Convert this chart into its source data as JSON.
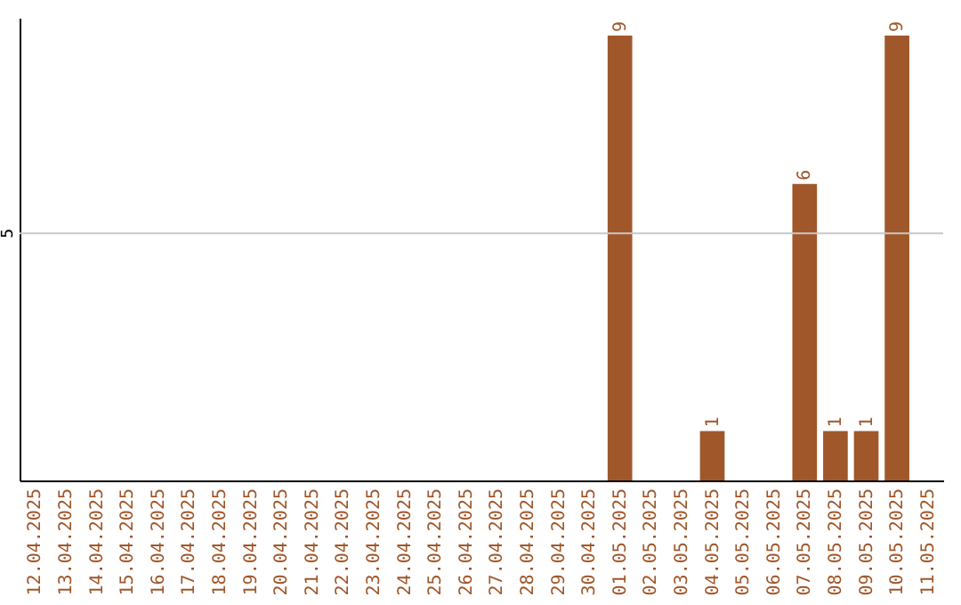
{
  "chart_data": {
    "type": "bar",
    "categories": [
      "12.04.2025",
      "13.04.2025",
      "14.04.2025",
      "15.04.2025",
      "16.04.2025",
      "17.04.2025",
      "18.04.2025",
      "19.04.2025",
      "20.04.2025",
      "21.04.2025",
      "22.04.2025",
      "23.04.2025",
      "24.04.2025",
      "25.04.2025",
      "26.04.2025",
      "27.04.2025",
      "28.04.2025",
      "29.04.2025",
      "30.04.2025",
      "01.05.2025",
      "02.05.2025",
      "03.05.2025",
      "04.05.2025",
      "05.05.2025",
      "06.05.2025",
      "07.05.2025",
      "08.05.2025",
      "09.05.2025",
      "10.05.2025",
      "11.05.2025"
    ],
    "values": [
      null,
      null,
      null,
      null,
      null,
      null,
      null,
      null,
      null,
      null,
      null,
      null,
      null,
      null,
      null,
      null,
      null,
      null,
      null,
      9,
      null,
      null,
      1,
      null,
      null,
      6,
      1,
      1,
      9,
      null
    ],
    "data_labels": true,
    "color": "#a0572a",
    "ref_lines": [
      {
        "axis": "y",
        "value": 5,
        "label": "5",
        "color": "#c8c8c8"
      }
    ]
  }
}
